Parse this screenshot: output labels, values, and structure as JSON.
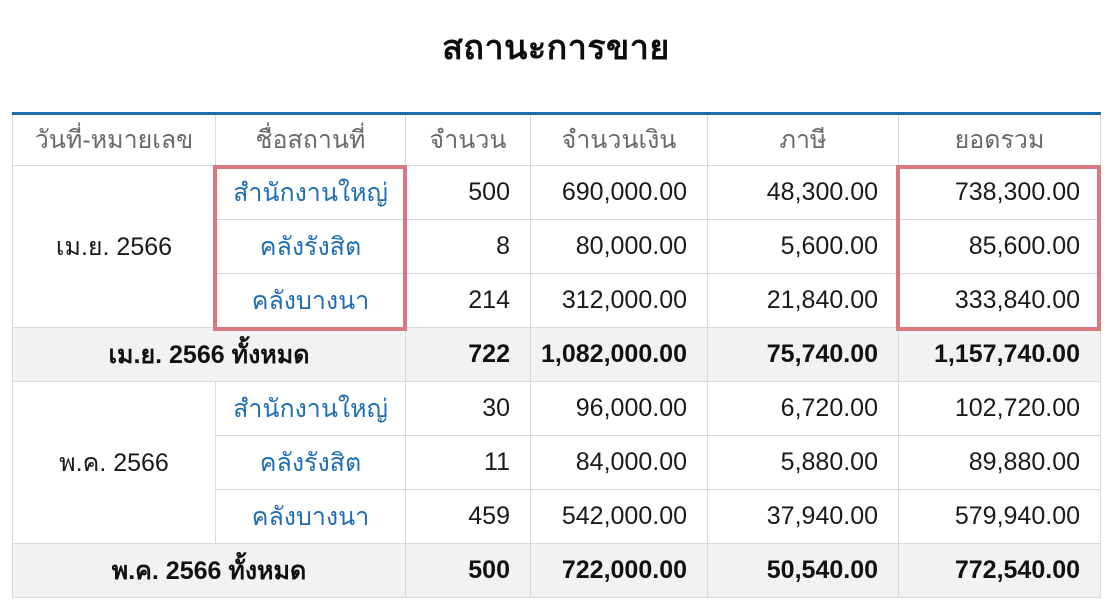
{
  "title": "สถานะการขาย",
  "colors": {
    "accent_blue_top_border": "#1b6ca8",
    "link_blue": "#1f6db5",
    "highlight_red": "#d9787f",
    "subtotal_row_bg": "#f2f2f2",
    "header_text_gray": "#6a6a6a",
    "gridline_gray": "#d9d9d9"
  },
  "table": {
    "headers": [
      "วันที่-หมายเลข",
      "ชื่อสถานที่",
      "จำนวน",
      "จำนวนเงิน",
      "ภาษี",
      "ยอดรวม"
    ],
    "groups": [
      {
        "period": "เม.ย. 2566",
        "rows": [
          {
            "place": "สำนักงานใหญ่",
            "qty": "500",
            "amount": "690,000.00",
            "tax": "48,300.00",
            "total": "738,300.00"
          },
          {
            "place": "คลังรังสิต",
            "qty": "8",
            "amount": "80,000.00",
            "tax": "5,600.00",
            "total": "85,600.00"
          },
          {
            "place": "คลังบางนา",
            "qty": "214",
            "amount": "312,000.00",
            "tax": "21,840.00",
            "total": "333,840.00"
          }
        ],
        "subtotal": {
          "label": "เม.ย. 2566 ทั้งหมด",
          "qty": "722",
          "amount": "1,082,000.00",
          "tax": "75,740.00",
          "total": "1,157,740.00"
        }
      },
      {
        "period": "พ.ค. 2566",
        "rows": [
          {
            "place": "สำนักงานใหญ่",
            "qty": "30",
            "amount": "96,000.00",
            "tax": "6,720.00",
            "total": "102,720.00"
          },
          {
            "place": "คลังรังสิต",
            "qty": "11",
            "amount": "84,000.00",
            "tax": "5,880.00",
            "total": "89,880.00"
          },
          {
            "place": "คลังบางนา",
            "qty": "459",
            "amount": "542,000.00",
            "tax": "37,940.00",
            "total": "579,940.00"
          }
        ],
        "subtotal": {
          "label": "พ.ค. 2566 ทั้งหมด",
          "qty": "500",
          "amount": "722,000.00",
          "tax": "50,540.00",
          "total": "772,540.00"
        }
      }
    ]
  }
}
